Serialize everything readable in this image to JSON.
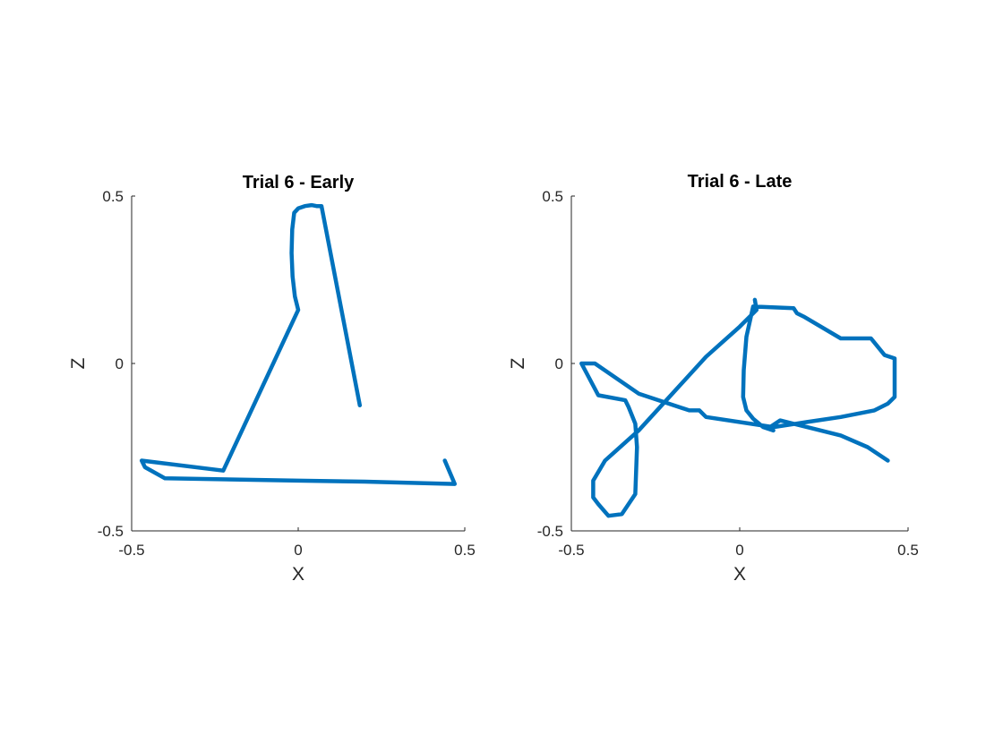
{
  "colors": {
    "line": "#0072BD",
    "axis": "#262626",
    "background": "#ffffff"
  },
  "chart_data": [
    {
      "type": "line",
      "title": "Trial 6 - Early",
      "xlabel": "X",
      "ylabel": "Z",
      "xlim": [
        -0.5,
        0.5
      ],
      "ylim": [
        -0.5,
        0.5
      ],
      "xticks": [
        -0.5,
        0,
        0.5
      ],
      "yticks": [
        -0.5,
        0,
        0.5
      ],
      "xtick_labels": [
        "-0.5",
        "0",
        "0.5"
      ],
      "ytick_labels": [
        "-0.5",
        "0",
        "0.5"
      ],
      "grid": false,
      "series": [
        {
          "x": [
            0.185,
            0.07,
            0.055,
            0.04,
            0.02,
            0.0,
            -0.012,
            -0.018,
            -0.02,
            -0.017,
            -0.01,
            0.0,
            -0.225,
            -0.47,
            -0.46,
            -0.4,
            0.0,
            0.2,
            0.47,
            0.44
          ],
          "y": [
            -0.125,
            0.47,
            0.47,
            0.473,
            0.47,
            0.463,
            0.45,
            0.4,
            0.33,
            0.26,
            0.2,
            0.16,
            -0.32,
            -0.29,
            -0.31,
            -0.343,
            -0.35,
            -0.353,
            -0.36,
            -0.29
          ]
        }
      ]
    },
    {
      "type": "line",
      "title": "Trial 6 - Late",
      "xlabel": "X",
      "ylabel": "Z",
      "xlim": [
        -0.5,
        0.5
      ],
      "ylim": [
        -0.5,
        0.5
      ],
      "xticks": [
        -0.5,
        0,
        0.5
      ],
      "yticks": [
        -0.5,
        0,
        0.5
      ],
      "xtick_labels": [
        "-0.5",
        "0",
        "0.5"
      ],
      "ytick_labels": [
        "-0.5",
        "0",
        "0.5"
      ],
      "grid": false,
      "series": [
        {
          "x": [
            0.44,
            0.38,
            0.3,
            0.2,
            0.12,
            0.09,
            0.1,
            0.07,
            0.04,
            0.02,
            0.01,
            0.012,
            0.02,
            0.04,
            0.16,
            0.17,
            0.19,
            0.3,
            0.39,
            0.43,
            0.46,
            0.46,
            0.44,
            0.4,
            0.3,
            0.2,
            0.1,
            -0.1,
            -0.12,
            -0.15,
            -0.3,
            -0.43,
            -0.47,
            -0.42,
            -0.34,
            -0.33,
            -0.31,
            -0.305,
            -0.31,
            -0.35,
            -0.39,
            -0.42,
            -0.435,
            -0.435,
            -0.4,
            -0.3,
            -0.2,
            -0.1,
            0.0,
            0.05,
            0.045
          ],
          "y": [
            -0.29,
            -0.25,
            -0.215,
            -0.19,
            -0.17,
            -0.19,
            -0.2,
            -0.19,
            -0.165,
            -0.14,
            -0.1,
            -0.02,
            0.08,
            0.17,
            0.165,
            0.15,
            0.14,
            0.075,
            0.075,
            0.025,
            0.015,
            -0.1,
            -0.12,
            -0.14,
            -0.16,
            -0.175,
            -0.19,
            -0.16,
            -0.14,
            -0.14,
            -0.09,
            0.0,
            0.0,
            -0.095,
            -0.11,
            -0.13,
            -0.18,
            -0.25,
            -0.39,
            -0.45,
            -0.455,
            -0.42,
            -0.4,
            -0.35,
            -0.29,
            -0.2,
            -0.09,
            0.02,
            0.11,
            0.16,
            0.19
          ]
        }
      ]
    }
  ]
}
